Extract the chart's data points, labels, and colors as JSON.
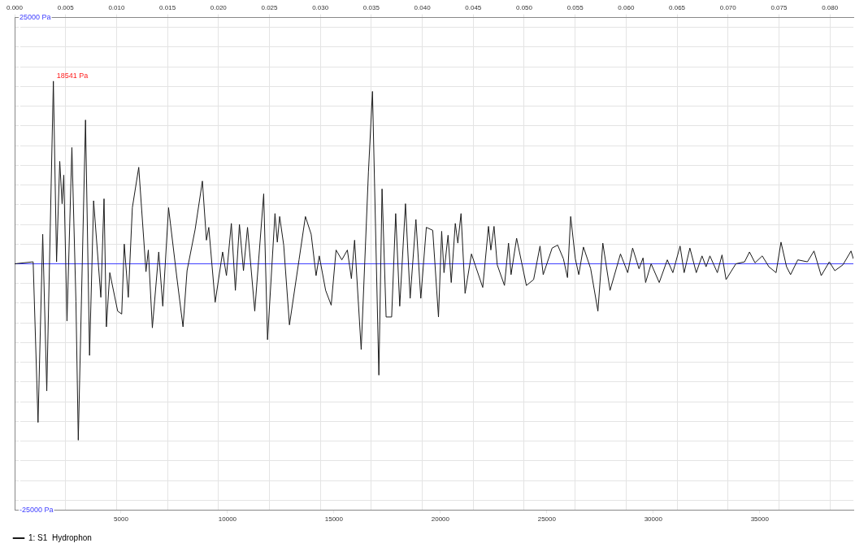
{
  "chart_data": {
    "type": "line",
    "x": [
      0,
      870,
      1100,
      1320,
      1510,
      1820,
      1970,
      2120,
      2230,
      2310,
      2460,
      2690,
      2880,
      2990,
      3330,
      3520,
      3710,
      4050,
      4200,
      4310,
      4470,
      4840,
      5030,
      5150,
      5340,
      5530,
      5830,
      6170,
      6280,
      6470,
      6770,
      6960,
      7230,
      7610,
      7910,
      8100,
      8480,
      8820,
      9010,
      9120,
      9420,
      9770,
      9950,
      10180,
      10370,
      10560,
      10750,
      10940,
      11280,
      11700,
      11880,
      12230,
      12340,
      12450,
      12640,
      12910,
      13360,
      13660,
      13930,
      14160,
      14310,
      14610,
      14870,
      15100,
      15370,
      15630,
      15820,
      15970,
      16280,
      16620,
      16810,
      17110,
      17260,
      17450,
      17710,
      17900,
      18090,
      18360,
      18580,
      18850,
      19080,
      19340,
      19640,
      19910,
      20060,
      20170,
      20360,
      20510,
      20700,
      20820,
      20970,
      21160,
      21460,
      21990,
      22260,
      22370,
      22520,
      22670,
      23010,
      23200,
      23320,
      23580,
      24040,
      24380,
      24680,
      24830,
      25250,
      25510,
      25780,
      25970,
      26120,
      26340,
      26500,
      26720,
      27060,
      27400,
      27630,
      27970,
      28460,
      28800,
      29030,
      29330,
      29520,
      29640,
      29900,
      30280,
      30660,
      30920,
      31260,
      31450,
      31720,
      32020,
      32290,
      32480,
      32660,
      33010,
      33230,
      33420,
      33880,
      34290,
      34520,
      34780,
      35120,
      35430,
      35770,
      36000,
      36260,
      36450,
      36790,
      37240,
      37550,
      37890,
      38270,
      38530,
      38910,
      39290,
      39400
    ],
    "series": [
      {
        "name": "1: S1  Hydrophon",
        "color": "#1a1a1a",
        "values": [
          0,
          200,
          -16100,
          3000,
          -12900,
          18541,
          200,
          10400,
          6100,
          9000,
          -5800,
          11800,
          -3800,
          -17900,
          14600,
          -9300,
          6400,
          -3400,
          6600,
          -6400,
          -900,
          -4800,
          -5100,
          2000,
          -3400,
          5700,
          9800,
          -800,
          1400,
          -6500,
          1200,
          -4300,
          5700,
          -1200,
          -6400,
          -700,
          3500,
          8400,
          2400,
          3700,
          -3900,
          1200,
          -1200,
          4100,
          -2700,
          4000,
          -700,
          3700,
          -4800,
          7100,
          -7700,
          5100,
          2200,
          4800,
          1900,
          -6200,
          400,
          4800,
          3000,
          -1200,
          800,
          -2700,
          -4200,
          1400,
          400,
          1400,
          -1500,
          2400,
          -8700,
          9300,
          17500,
          -11300,
          7600,
          -5400,
          -5400,
          5100,
          -4300,
          6100,
          -3500,
          4500,
          -3500,
          3700,
          3400,
          -5400,
          3300,
          -900,
          2900,
          -1900,
          4100,
          2100,
          5100,
          -3000,
          1000,
          -2400,
          3800,
          1400,
          3800,
          -100,
          -2200,
          2100,
          -1100,
          2600,
          -2200,
          -1600,
          1800,
          -1100,
          1600,
          1900,
          500,
          -1400,
          4800,
          500,
          -1100,
          1700,
          -500,
          -4800,
          2100,
          -2700,
          1000,
          -900,
          1600,
          -500,
          600,
          -1900,
          0,
          -1900,
          400,
          -900,
          1800,
          -900,
          1600,
          -900,
          800,
          -300,
          800,
          -900,
          900,
          -1600,
          0,
          200,
          1200,
          100,
          800,
          -300,
          -900,
          2200,
          -300,
          -1100,
          400,
          200,
          1300,
          -1200,
          200,
          -700,
          -100,
          1300,
          500
        ]
      }
    ],
    "xlim": [
      0,
      39400
    ],
    "xticks": [
      5000,
      10000,
      15000,
      20000,
      25000,
      30000,
      35000
    ],
    "x2lim": [
      0,
      0.0823
    ],
    "x2ticks": [
      {
        "value": 0,
        "label": "0.000"
      },
      {
        "value": 0.005,
        "label": "0.005"
      },
      {
        "value": 0.01,
        "label": "0.010"
      },
      {
        "value": 0.015,
        "label": "0.015"
      },
      {
        "value": 0.02,
        "label": "0.020"
      },
      {
        "value": 0.025,
        "label": "0.025"
      },
      {
        "value": 0.03,
        "label": "0.030"
      },
      {
        "value": 0.035,
        "label": "0.035"
      },
      {
        "value": 0.04,
        "label": "0.040"
      },
      {
        "value": 0.045,
        "label": "0.045"
      },
      {
        "value": 0.05,
        "label": "0.050"
      },
      {
        "value": 0.055,
        "label": "0.055"
      },
      {
        "value": 0.06,
        "label": "0.060"
      },
      {
        "value": 0.065,
        "label": "0.065"
      },
      {
        "value": 0.07,
        "label": "0.070"
      },
      {
        "value": 0.075,
        "label": "0.075"
      },
      {
        "value": 0.08,
        "label": "0.080"
      }
    ],
    "ylim": [
      -25000,
      25000
    ],
    "yticks": [
      {
        "value": -25000,
        "label": "-25000 Pa"
      },
      {
        "value": -24000,
        "label": null
      },
      {
        "value": -22000,
        "label": null
      },
      {
        "value": -20000,
        "label": null
      },
      {
        "value": -18000,
        "label": null
      },
      {
        "value": -16000,
        "label": null
      },
      {
        "value": -14000,
        "label": null
      },
      {
        "value": -12000,
        "label": null
      },
      {
        "value": -10000,
        "label": null
      },
      {
        "value": -8000,
        "label": null
      },
      {
        "value": -6000,
        "label": null
      },
      {
        "value": -4000,
        "label": null
      },
      {
        "value": -2000,
        "label": null
      },
      {
        "value": 2000,
        "label": null
      },
      {
        "value": 4000,
        "label": null
      },
      {
        "value": 6000,
        "label": null
      },
      {
        "value": 8000,
        "label": null
      },
      {
        "value": 10000,
        "label": null
      },
      {
        "value": 12000,
        "label": null
      },
      {
        "value": 14000,
        "label": null
      },
      {
        "value": 16000,
        "label": null
      },
      {
        "value": 18000,
        "label": null
      },
      {
        "value": 20000,
        "label": null
      },
      {
        "value": 22000,
        "label": null
      },
      {
        "value": 24000,
        "label": null
      },
      {
        "value": 25000,
        "label": "25000 Pa"
      }
    ],
    "ref_lines": [
      {
        "axis": "y",
        "value": 0,
        "color": "#4040ff"
      }
    ],
    "annotations": [
      {
        "text": "18541 Pa",
        "x": 1820,
        "y": 18541
      }
    ],
    "grid": true,
    "legend": "bottom left",
    "marker": "none",
    "line_style": "solid"
  }
}
